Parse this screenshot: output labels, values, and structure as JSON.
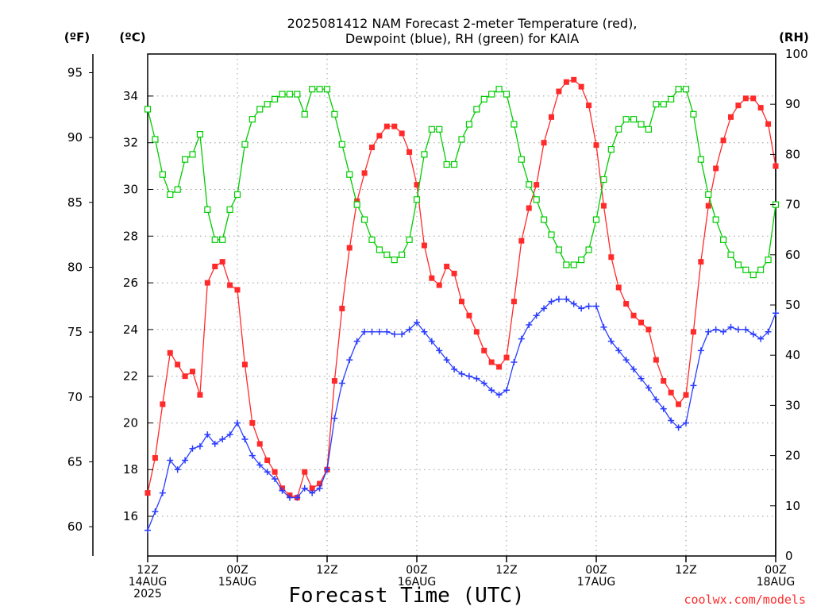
{
  "chart_data": {
    "type": "line",
    "title_lines": [
      "2025081412 NAM Forecast 2-meter Temperature (red),",
      "Dewpoint (blue), RH (green) for KAIA"
    ],
    "unit_f": "(ºF)",
    "unit_c": "(ºC)",
    "unit_rh": "(RH)",
    "xlabel": "Forecast Time (UTC)",
    "credit": "coolwx.com/models",
    "x_hours_range": [
      0,
      84
    ],
    "x_ticks": [
      {
        "h": 0,
        "lines": [
          "12Z",
          "14AUG",
          "2025"
        ]
      },
      {
        "h": 12,
        "lines": [
          "00Z",
          "15AUG"
        ]
      },
      {
        "h": 24,
        "lines": [
          "12Z"
        ]
      },
      {
        "h": 36,
        "lines": [
          "00Z",
          "16AUG"
        ]
      },
      {
        "h": 48,
        "lines": [
          "12Z"
        ]
      },
      {
        "h": 60,
        "lines": [
          "00Z",
          "17AUG"
        ]
      },
      {
        "h": 72,
        "lines": [
          "12Z"
        ]
      },
      {
        "h": 84,
        "lines": [
          "00Z",
          "18AUG"
        ]
      }
    ],
    "c_ticks": [
      "16",
      "18",
      "20",
      "22",
      "24",
      "26",
      "28",
      "30",
      "32",
      "34"
    ],
    "f_ticks": [
      "60",
      "65",
      "70",
      "75",
      "80",
      "85",
      "90",
      "95"
    ],
    "rh_ticks": [
      "0",
      "10",
      "20",
      "30",
      "40",
      "50",
      "60",
      "70",
      "80",
      "90",
      "100"
    ],
    "c_range": [
      14.3,
      35.8
    ],
    "rh_range": [
      0,
      100
    ],
    "grid": true,
    "colors": {
      "temperature": "#ff2a2a",
      "dewpoint": "#2a3cff",
      "rh": "#00cc00",
      "grid": "#999999"
    },
    "series": [
      {
        "name": "Temperature (red)",
        "axis": "c",
        "marker": "filled-square",
        "values": [
          [
            0,
            17.0
          ],
          [
            1,
            18.5
          ],
          [
            2,
            20.8
          ],
          [
            3,
            23.0
          ],
          [
            4,
            22.5
          ],
          [
            5,
            22.0
          ],
          [
            6,
            22.2
          ],
          [
            7,
            21.2
          ],
          [
            8,
            26.0
          ],
          [
            9,
            26.7
          ],
          [
            10,
            26.9
          ],
          [
            11,
            25.9
          ],
          [
            12,
            25.7
          ],
          [
            13,
            22.5
          ],
          [
            14,
            20.0
          ],
          [
            15,
            19.1
          ],
          [
            16,
            18.4
          ],
          [
            17,
            17.9
          ],
          [
            18,
            17.2
          ],
          [
            19,
            16.9
          ],
          [
            20,
            16.8
          ],
          [
            21,
            17.9
          ],
          [
            22,
            17.2
          ],
          [
            23,
            17.4
          ],
          [
            24,
            18.0
          ],
          [
            25,
            21.8
          ],
          [
            26,
            24.9
          ],
          [
            27,
            27.5
          ],
          [
            28,
            29.5
          ],
          [
            29,
            30.7
          ],
          [
            30,
            31.8
          ],
          [
            31,
            32.3
          ],
          [
            32,
            32.7
          ],
          [
            33,
            32.7
          ],
          [
            34,
            32.4
          ],
          [
            35,
            31.6
          ],
          [
            36,
            30.2
          ],
          [
            37,
            27.6
          ],
          [
            38,
            26.2
          ],
          [
            39,
            25.9
          ],
          [
            40,
            26.7
          ],
          [
            41,
            26.4
          ],
          [
            42,
            25.2
          ],
          [
            43,
            24.6
          ],
          [
            44,
            23.9
          ],
          [
            45,
            23.1
          ],
          [
            46,
            22.6
          ],
          [
            47,
            22.4
          ],
          [
            48,
            22.8
          ],
          [
            49,
            25.2
          ],
          [
            50,
            27.8
          ],
          [
            51,
            29.2
          ],
          [
            52,
            30.2
          ],
          [
            53,
            32.0
          ],
          [
            54,
            33.1
          ],
          [
            55,
            34.2
          ],
          [
            56,
            34.6
          ],
          [
            57,
            34.7
          ],
          [
            58,
            34.4
          ],
          [
            59,
            33.6
          ],
          [
            60,
            31.9
          ],
          [
            61,
            29.3
          ],
          [
            62,
            27.1
          ],
          [
            63,
            25.8
          ],
          [
            64,
            25.1
          ],
          [
            65,
            24.6
          ],
          [
            66,
            24.3
          ],
          [
            67,
            24.0
          ],
          [
            68,
            22.7
          ],
          [
            69,
            21.8
          ],
          [
            70,
            21.3
          ],
          [
            71,
            20.8
          ],
          [
            72,
            21.2
          ],
          [
            73,
            23.9
          ],
          [
            74,
            26.9
          ],
          [
            75,
            29.3
          ],
          [
            76,
            30.9
          ],
          [
            77,
            32.1
          ],
          [
            78,
            33.1
          ],
          [
            79,
            33.6
          ],
          [
            80,
            33.9
          ],
          [
            81,
            33.9
          ],
          [
            82,
            33.5
          ],
          [
            83,
            32.8
          ],
          [
            84,
            31.0
          ]
        ]
      },
      {
        "name": "Dewpoint (blue)",
        "axis": "c",
        "marker": "plus",
        "values": [
          [
            0,
            15.4
          ],
          [
            1,
            16.2
          ],
          [
            2,
            17.0
          ],
          [
            3,
            18.4
          ],
          [
            4,
            18.0
          ],
          [
            5,
            18.4
          ],
          [
            6,
            18.9
          ],
          [
            7,
            19.0
          ],
          [
            8,
            19.5
          ],
          [
            9,
            19.1
          ],
          [
            10,
            19.3
          ],
          [
            11,
            19.5
          ],
          [
            12,
            20.0
          ],
          [
            13,
            19.3
          ],
          [
            14,
            18.6
          ],
          [
            15,
            18.2
          ],
          [
            16,
            17.9
          ],
          [
            17,
            17.6
          ],
          [
            18,
            17.1
          ],
          [
            19,
            16.8
          ],
          [
            20,
            16.8
          ],
          [
            21,
            17.2
          ],
          [
            22,
            17.0
          ],
          [
            23,
            17.2
          ],
          [
            24,
            18.0
          ],
          [
            25,
            20.2
          ],
          [
            26,
            21.7
          ],
          [
            27,
            22.7
          ],
          [
            28,
            23.5
          ],
          [
            29,
            23.9
          ],
          [
            30,
            23.9
          ],
          [
            31,
            23.9
          ],
          [
            32,
            23.9
          ],
          [
            33,
            23.8
          ],
          [
            34,
            23.8
          ],
          [
            35,
            24.0
          ],
          [
            36,
            24.3
          ],
          [
            37,
            23.9
          ],
          [
            38,
            23.5
          ],
          [
            39,
            23.1
          ],
          [
            40,
            22.7
          ],
          [
            41,
            22.3
          ],
          [
            42,
            22.1
          ],
          [
            43,
            22.0
          ],
          [
            44,
            21.9
          ],
          [
            45,
            21.7
          ],
          [
            46,
            21.4
          ],
          [
            47,
            21.2
          ],
          [
            48,
            21.4
          ],
          [
            49,
            22.6
          ],
          [
            50,
            23.6
          ],
          [
            51,
            24.2
          ],
          [
            52,
            24.6
          ],
          [
            53,
            24.9
          ],
          [
            54,
            25.2
          ],
          [
            55,
            25.3
          ],
          [
            56,
            25.3
          ],
          [
            57,
            25.1
          ],
          [
            58,
            24.9
          ],
          [
            59,
            25.0
          ],
          [
            60,
            25.0
          ],
          [
            61,
            24.1
          ],
          [
            62,
            23.5
          ],
          [
            63,
            23.1
          ],
          [
            64,
            22.7
          ],
          [
            65,
            22.3
          ],
          [
            66,
            21.9
          ],
          [
            67,
            21.5
          ],
          [
            68,
            21.0
          ],
          [
            69,
            20.6
          ],
          [
            70,
            20.1
          ],
          [
            71,
            19.8
          ],
          [
            72,
            20.0
          ],
          [
            73,
            21.6
          ],
          [
            74,
            23.1
          ],
          [
            75,
            23.9
          ],
          [
            76,
            24.0
          ],
          [
            77,
            23.9
          ],
          [
            78,
            24.1
          ],
          [
            79,
            24.0
          ],
          [
            80,
            24.0
          ],
          [
            81,
            23.8
          ],
          [
            82,
            23.6
          ],
          [
            83,
            23.9
          ],
          [
            84,
            24.7
          ]
        ]
      },
      {
        "name": "RH (green)",
        "axis": "rh",
        "marker": "open-square",
        "values": [
          [
            0,
            89
          ],
          [
            1,
            83
          ],
          [
            2,
            76
          ],
          [
            3,
            72
          ],
          [
            4,
            73
          ],
          [
            5,
            79
          ],
          [
            6,
            80
          ],
          [
            7,
            84
          ],
          [
            8,
            69
          ],
          [
            9,
            63
          ],
          [
            10,
            63
          ],
          [
            11,
            69
          ],
          [
            12,
            72
          ],
          [
            13,
            82
          ],
          [
            14,
            87
          ],
          [
            15,
            89
          ],
          [
            16,
            90
          ],
          [
            17,
            91
          ],
          [
            18,
            92
          ],
          [
            19,
            92
          ],
          [
            20,
            92
          ],
          [
            21,
            88
          ],
          [
            22,
            93
          ],
          [
            23,
            93
          ],
          [
            24,
            93
          ],
          [
            25,
            88
          ],
          [
            26,
            82
          ],
          [
            27,
            76
          ],
          [
            28,
            70
          ],
          [
            29,
            67
          ],
          [
            30,
            63
          ],
          [
            31,
            61
          ],
          [
            32,
            60
          ],
          [
            33,
            59
          ],
          [
            34,
            60
          ],
          [
            35,
            63
          ],
          [
            36,
            71
          ],
          [
            37,
            80
          ],
          [
            38,
            85
          ],
          [
            39,
            85
          ],
          [
            40,
            78
          ],
          [
            41,
            78
          ],
          [
            42,
            83
          ],
          [
            43,
            86
          ],
          [
            44,
            89
          ],
          [
            45,
            91
          ],
          [
            46,
            92
          ],
          [
            47,
            93
          ],
          [
            48,
            92
          ],
          [
            49,
            86
          ],
          [
            50,
            79
          ],
          [
            51,
            74
          ],
          [
            52,
            71
          ],
          [
            53,
            67
          ],
          [
            54,
            64
          ],
          [
            55,
            61
          ],
          [
            56,
            58
          ],
          [
            57,
            58
          ],
          [
            58,
            59
          ],
          [
            59,
            61
          ],
          [
            60,
            67
          ],
          [
            61,
            75
          ],
          [
            62,
            81
          ],
          [
            63,
            85
          ],
          [
            64,
            87
          ],
          [
            65,
            87
          ],
          [
            66,
            86
          ],
          [
            67,
            85
          ],
          [
            68,
            90
          ],
          [
            69,
            90
          ],
          [
            70,
            91
          ],
          [
            71,
            93
          ],
          [
            72,
            93
          ],
          [
            73,
            88
          ],
          [
            74,
            79
          ],
          [
            75,
            72
          ],
          [
            76,
            67
          ],
          [
            77,
            63
          ],
          [
            78,
            60
          ],
          [
            79,
            58
          ],
          [
            80,
            57
          ],
          [
            81,
            56
          ],
          [
            82,
            57
          ],
          [
            83,
            59
          ],
          [
            84,
            70
          ]
        ]
      }
    ]
  }
}
